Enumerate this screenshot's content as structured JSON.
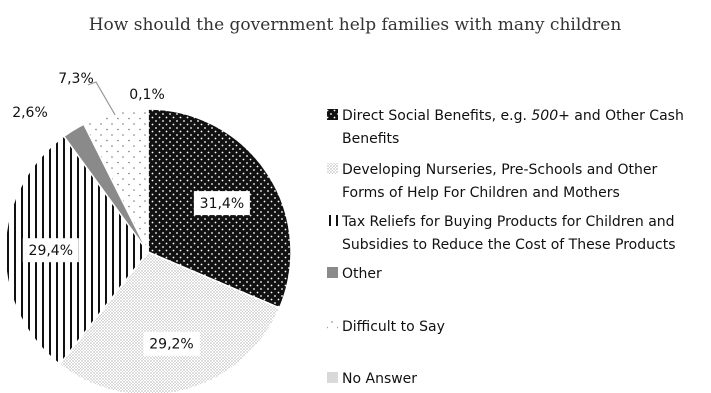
{
  "chart_data": {
    "type": "pie",
    "title": "How should the government help families with many children",
    "slices": [
      {
        "label": "Direct Social Benefits, e.g. 500+ and Other Cash Benefits",
        "legend_lines": [
          [
            {
              "text": "Direct Social Benefits, e.g. ",
              "italic": false
            },
            {
              "text": "500",
              "italic": true
            },
            {
              "text": "+ and Other Cash",
              "italic": false
            }
          ],
          [
            {
              "text": "Benefits",
              "italic": false
            }
          ]
        ],
        "value": 31.4,
        "value_label": "31,4%",
        "pattern": "dots-on-black"
      },
      {
        "label": "Developing Nurseries, Pre-Schools and Other Forms of Help For Children and Mothers",
        "legend_lines": [
          [
            {
              "text": "Developing Nurseries, Pre-Schools and Other",
              "italic": false
            }
          ],
          [
            {
              "text": "Forms of Help For Children and Mothers",
              "italic": false
            }
          ]
        ],
        "value": 29.2,
        "value_label": "29,2%",
        "pattern": "fine-dots"
      },
      {
        "label": "Tax Reliefs for Buying Products for Children and Subsidies to Reduce the Cost of These Products",
        "legend_lines": [
          [
            {
              "text": "Tax Reliefs for Buying Products for Children and",
              "italic": false
            }
          ],
          [
            {
              "text": "Subsidies to Reduce the Cost of These Products",
              "italic": false
            }
          ]
        ],
        "value": 29.4,
        "value_label": "29,4%",
        "pattern": "vertical-stripes"
      },
      {
        "label": "Other",
        "legend_lines": [
          [
            {
              "text": "Other",
              "italic": false
            }
          ]
        ],
        "value": 2.6,
        "value_label": "2,6%",
        "pattern": "solid-gray"
      },
      {
        "label": "Difficult to Say",
        "legend_lines": [
          [
            {
              "text": "Difficult to Say",
              "italic": false
            }
          ]
        ],
        "value": 7.3,
        "value_label": "7,3%",
        "pattern": "sparse-dots"
      },
      {
        "label": "No Answer",
        "legend_lines": [
          [
            {
              "text": "No Answer",
              "italic": false
            }
          ]
        ],
        "value": 0.1,
        "value_label": "0,1%",
        "pattern": "light-gray"
      }
    ],
    "legend_position": "right",
    "colors": {
      "black": "#111111",
      "gray": "#8a8a8a",
      "light_gray": "#d9d9d9",
      "dot_gray": "#9a9a9a"
    }
  }
}
